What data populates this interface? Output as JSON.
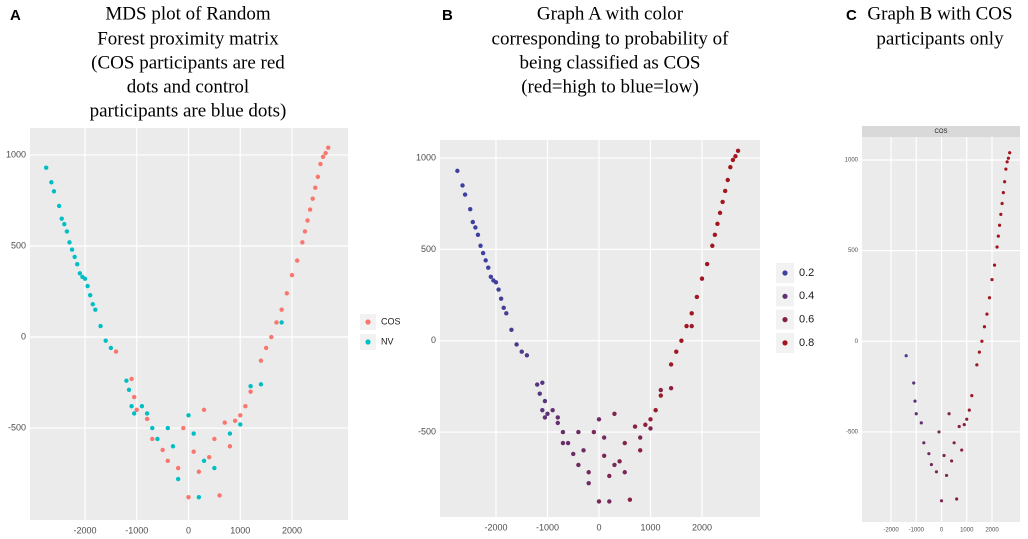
{
  "chart_data": [
    {
      "type": "scatter",
      "panel_label": "A",
      "title_lines": [
        "MDS plot of Random",
        "Forest proximity matrix",
        "(COS participants are red",
        "dots and control",
        "participants are blue dots)"
      ],
      "xlim": [
        -3063,
        3082
      ],
      "ylim": [
        -1005,
        1148
      ],
      "xticks": [
        -2000,
        -1000,
        0,
        1000,
        2000
      ],
      "yticks": [
        -500,
        0,
        500,
        1000
      ],
      "grid": true,
      "legend": "right",
      "series": [
        {
          "name": "COS",
          "color": "#f8766d",
          "x": [
            -1400,
            -1100,
            -1050,
            -1000,
            -800,
            -700,
            -500,
            -400,
            -200,
            -100,
            0,
            100,
            200,
            300,
            400,
            500,
            600,
            700,
            800,
            900,
            1000,
            1100,
            1200,
            1400,
            1500,
            1600,
            1700,
            1800,
            1900,
            2000,
            2100,
            2200,
            2250,
            2300,
            2350,
            2400,
            2450,
            2500,
            2550,
            2600,
            2650,
            2700
          ],
          "values": [
            -80,
            -230,
            -330,
            -400,
            -450,
            -560,
            -620,
            -680,
            -720,
            -500,
            -880,
            -630,
            -740,
            -400,
            -660,
            -560,
            -870,
            -470,
            -600,
            -460,
            -430,
            -380,
            -300,
            -130,
            -60,
            0,
            80,
            150,
            240,
            340,
            420,
            520,
            580,
            640,
            700,
            760,
            820,
            880,
            950,
            990,
            1010,
            1040
          ]
        },
        {
          "name": "NV",
          "color": "#00bfc4",
          "x": [
            -2750,
            -2650,
            -2600,
            -2500,
            -2450,
            -2400,
            -2350,
            -2300,
            -2250,
            -2200,
            -2150,
            -2100,
            -2050,
            -2000,
            -1950,
            -1900,
            -1850,
            -1800,
            -1700,
            -1600,
            -1500,
            -1200,
            -1150,
            -1100,
            -1050,
            -900,
            -800,
            -700,
            -600,
            -400,
            -300,
            0,
            100,
            300,
            500,
            800,
            1000,
            1200,
            1400,
            1800,
            -200,
            200
          ],
          "values": [
            930,
            850,
            800,
            720,
            650,
            620,
            580,
            520,
            480,
            440,
            400,
            350,
            330,
            320,
            280,
            230,
            180,
            150,
            60,
            -20,
            -60,
            -240,
            -290,
            -380,
            -420,
            -380,
            -420,
            -500,
            -560,
            -500,
            -600,
            -430,
            -530,
            -680,
            -720,
            -530,
            -480,
            -270,
            -260,
            80,
            -780,
            -880
          ]
        }
      ]
    },
    {
      "type": "scatter",
      "panel_label": "B",
      "title_lines": [
        "Graph A with color",
        "corresponding to probability of",
        "being classified as COS",
        "(red=high to blue=low)"
      ],
      "xlim": [
        -3087,
        3126
      ],
      "ylim": [
        -965,
        1099
      ],
      "xticks": [
        -2000,
        -1000,
        0,
        1000,
        2000
      ],
      "yticks": [
        -500,
        0,
        500,
        1000
      ],
      "grid": true,
      "legend": "right",
      "color_low": "#3f3f9f",
      "color_high": "#a3151e",
      "legend_ticks": [
        0.2,
        0.4,
        0.6,
        0.8
      ],
      "x": [
        -2750,
        -2650,
        -2600,
        -2500,
        -2450,
        -2400,
        -2350,
        -2300,
        -2250,
        -2200,
        -2150,
        -2100,
        -2050,
        -2000,
        -1950,
        -1900,
        -1850,
        -1800,
        -1700,
        -1600,
        -1500,
        -1200,
        -1150,
        -1100,
        -1050,
        -900,
        -800,
        -700,
        -600,
        -400,
        -300,
        0,
        100,
        300,
        500,
        800,
        1000,
        1200,
        1400,
        1800,
        -200,
        200,
        -1400,
        -1100,
        -1050,
        -1000,
        -800,
        -700,
        -500,
        -400,
        -200,
        -100,
        0,
        100,
        200,
        300,
        400,
        500,
        600,
        700,
        800,
        900,
        1000,
        1100,
        1200,
        1400,
        1500,
        1600,
        1700,
        1800,
        1900,
        2000,
        2100,
        2200,
        2250,
        2300,
        2350,
        2400,
        2450,
        2500,
        2550,
        2600,
        2650,
        2700
      ],
      "values": [
        930,
        850,
        800,
        720,
        650,
        620,
        580,
        520,
        480,
        440,
        400,
        350,
        330,
        320,
        280,
        230,
        180,
        150,
        60,
        -20,
        -60,
        -240,
        -290,
        -380,
        -420,
        -380,
        -420,
        -500,
        -560,
        -500,
        -600,
        -430,
        -530,
        -680,
        -720,
        -530,
        -480,
        -270,
        -260,
        80,
        -780,
        -880,
        -80,
        -230,
        -330,
        -400,
        -450,
        -560,
        -620,
        -680,
        -720,
        -500,
        -880,
        -630,
        -740,
        -400,
        -660,
        -560,
        -870,
        -470,
        -600,
        -460,
        -430,
        -380,
        -300,
        -130,
        -60,
        0,
        80,
        150,
        240,
        340,
        420,
        520,
        580,
        640,
        700,
        760,
        820,
        880,
        950,
        990,
        1010,
        1040
      ],
      "probabilities": [
        0.12,
        0.13,
        0.14,
        0.15,
        0.15,
        0.16,
        0.16,
        0.17,
        0.18,
        0.18,
        0.19,
        0.2,
        0.2,
        0.21,
        0.22,
        0.22,
        0.23,
        0.24,
        0.26,
        0.28,
        0.3,
        0.34,
        0.35,
        0.37,
        0.38,
        0.4,
        0.42,
        0.44,
        0.45,
        0.46,
        0.48,
        0.5,
        0.5,
        0.52,
        0.54,
        0.56,
        0.58,
        0.62,
        0.66,
        0.75,
        0.48,
        0.5,
        0.3,
        0.35,
        0.37,
        0.38,
        0.42,
        0.44,
        0.48,
        0.5,
        0.52,
        0.54,
        0.55,
        0.56,
        0.57,
        0.58,
        0.6,
        0.6,
        0.62,
        0.64,
        0.66,
        0.68,
        0.7,
        0.72,
        0.74,
        0.76,
        0.78,
        0.8,
        0.8,
        0.82,
        0.83,
        0.84,
        0.85,
        0.86,
        0.86,
        0.87,
        0.87,
        0.88,
        0.88,
        0.89,
        0.89,
        0.9,
        0.9,
        0.9
      ]
    },
    {
      "type": "scatter",
      "panel_label": "C",
      "title_lines": [
        "Graph B with COS",
        "participants only"
      ],
      "facet_label": "COS",
      "xlim": [
        -3149,
        3109
      ],
      "ylim": [
        -997,
        1127
      ],
      "xticks": [
        -2000,
        -1000,
        0,
        1000,
        2000
      ],
      "yticks": [
        -500,
        0,
        500,
        1000
      ],
      "grid": true,
      "color_low": "#3f3f9f",
      "color_high": "#a3151e",
      "x": [
        -1400,
        -1100,
        -1050,
        -1000,
        -800,
        -700,
        -500,
        -400,
        -200,
        -100,
        0,
        100,
        200,
        300,
        400,
        500,
        600,
        700,
        800,
        900,
        1000,
        1100,
        1200,
        1400,
        1500,
        1600,
        1700,
        1800,
        1900,
        2000,
        2100,
        2200,
        2250,
        2300,
        2350,
        2400,
        2450,
        2500,
        2550,
        2600,
        2650,
        2700
      ],
      "values": [
        -80,
        -230,
        -330,
        -400,
        -450,
        -560,
        -620,
        -680,
        -720,
        -500,
        -880,
        -630,
        -740,
        -400,
        -660,
        -560,
        -870,
        -470,
        -600,
        -460,
        -430,
        -380,
        -300,
        -130,
        -60,
        0,
        80,
        150,
        240,
        340,
        420,
        520,
        580,
        640,
        700,
        760,
        820,
        880,
        950,
        990,
        1010,
        1040
      ],
      "probabilities": [
        0.3,
        0.35,
        0.37,
        0.38,
        0.42,
        0.44,
        0.48,
        0.5,
        0.52,
        0.54,
        0.55,
        0.56,
        0.57,
        0.58,
        0.6,
        0.6,
        0.62,
        0.64,
        0.66,
        0.68,
        0.7,
        0.72,
        0.74,
        0.76,
        0.78,
        0.8,
        0.8,
        0.82,
        0.83,
        0.84,
        0.85,
        0.86,
        0.86,
        0.87,
        0.87,
        0.88,
        0.88,
        0.89,
        0.89,
        0.9,
        0.9,
        0.9
      ]
    }
  ]
}
